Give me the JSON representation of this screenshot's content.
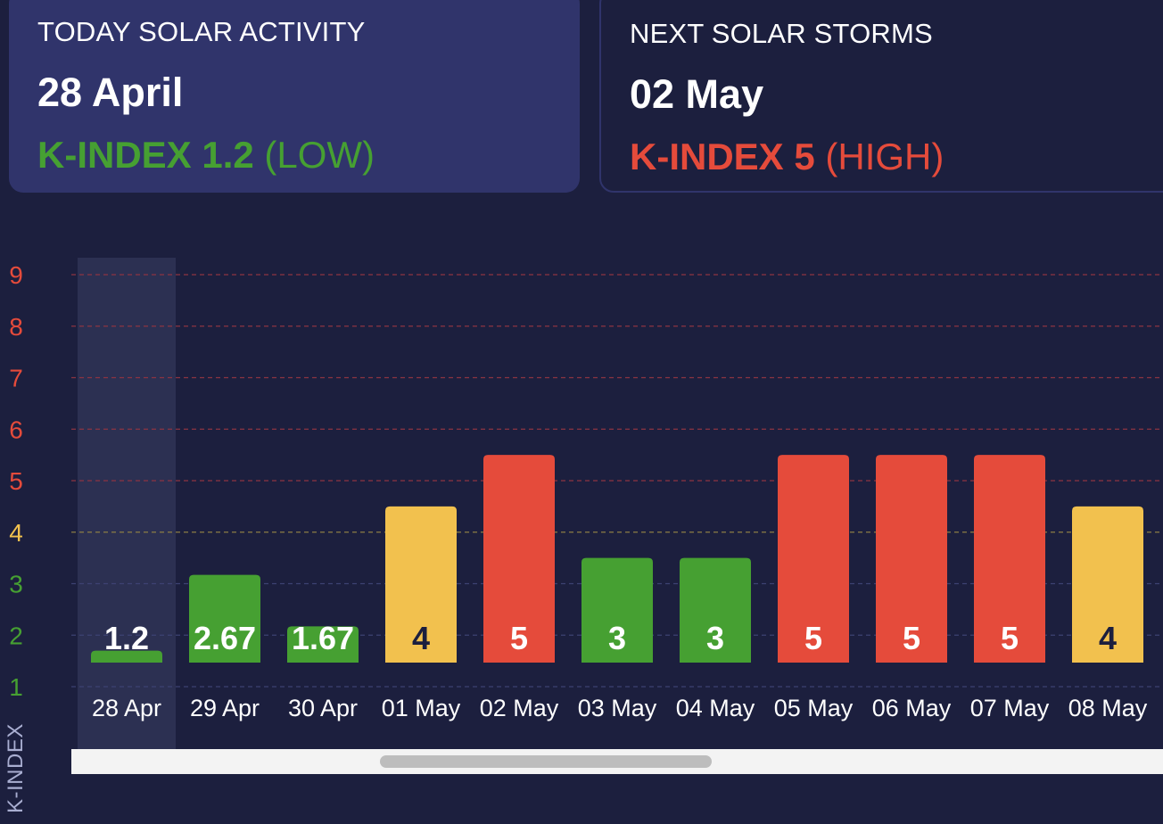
{
  "today_card": {
    "heading": "TODAY SOLAR ACTIVITY",
    "date": "28 April",
    "k_label": "K-INDEX 1.2",
    "k_level": "(LOW)"
  },
  "next_card": {
    "heading": "NEXT SOLAR STORMS",
    "date": "02 May",
    "k_label": "K-INDEX 5",
    "k_level": "(HIGH)"
  },
  "colors": {
    "low": "#46a032",
    "moderate": "#f2c14e",
    "high": "#e54b3b",
    "background": "#1c1f3e",
    "card": "#30346b"
  },
  "chart_data": {
    "type": "bar",
    "ylabel": "K-INDEX",
    "ylim": [
      1,
      9
    ],
    "y_ticks": [
      1,
      2,
      3,
      4,
      5,
      6,
      7,
      8,
      9
    ],
    "categories": [
      "28 Apr",
      "29 Apr",
      "30 Apr",
      "01 May",
      "02 May",
      "03 May",
      "04 May",
      "05 May",
      "06 May",
      "07 May",
      "08 May"
    ],
    "values": [
      1.2,
      2.67,
      1.67,
      4,
      5,
      3,
      3,
      5,
      5,
      5,
      4
    ],
    "value_labels": [
      "1.2",
      "2.67",
      "1.67",
      "4",
      "5",
      "3",
      "3",
      "5",
      "5",
      "5",
      "4"
    ],
    "levels": [
      "low",
      "low",
      "low",
      "moderate",
      "high",
      "low",
      "low",
      "high",
      "high",
      "high",
      "moderate"
    ],
    "highlighted_category": "28 Apr",
    "grid": true
  }
}
